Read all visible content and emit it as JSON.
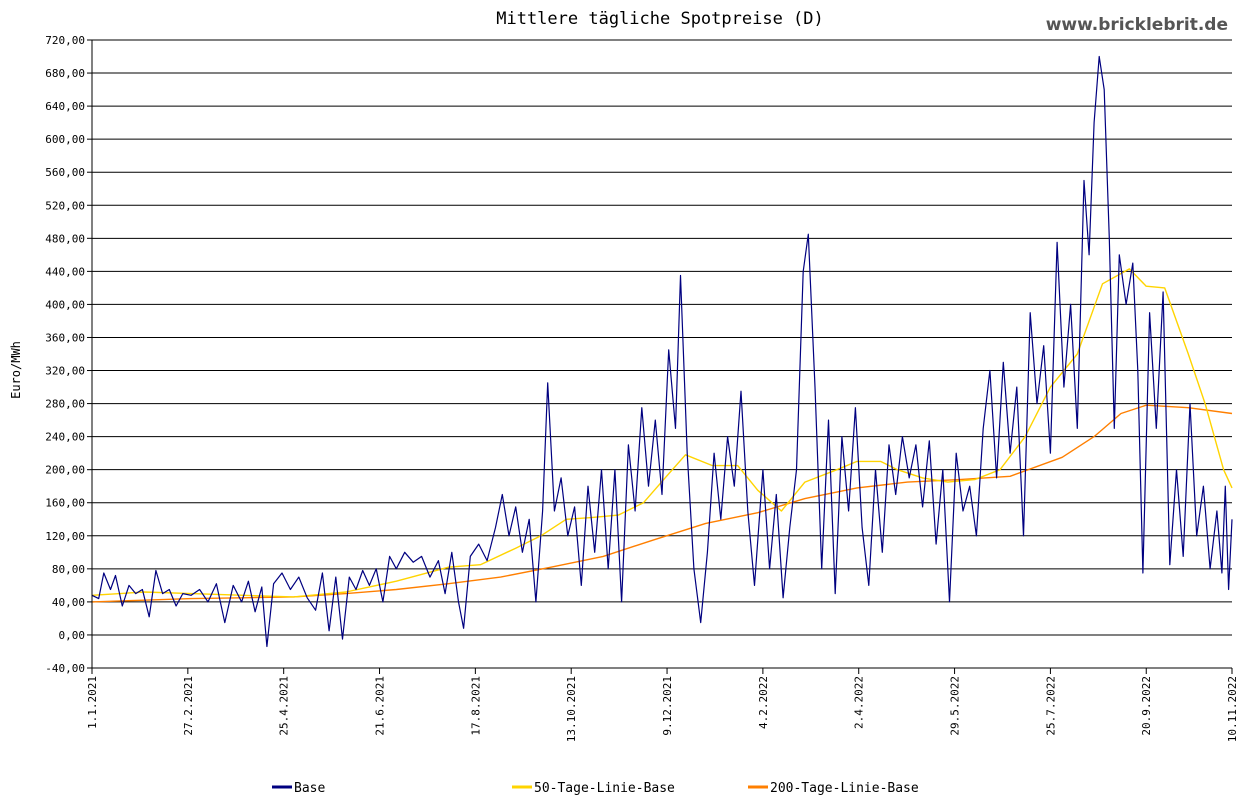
{
  "chart_data": {
    "type": "line",
    "title": "Mittlere tägliche Spotpreise (D)",
    "watermark": "www.bricklebrit.de",
    "ylabel": "Euro/MWh",
    "xlabel": "",
    "ylim": [
      -40,
      720
    ],
    "yticks": [
      -40,
      0,
      40,
      80,
      120,
      160,
      200,
      240,
      280,
      320,
      360,
      400,
      440,
      480,
      520,
      560,
      600,
      640,
      680,
      720
    ],
    "ytick_labels": [
      "-40,00",
      "0,00",
      "40,00",
      "80,00",
      "120,00",
      "160,00",
      "200,00",
      "240,00",
      "280,00",
      "320,00",
      "360,00",
      "400,00",
      "440,00",
      "480,00",
      "520,00",
      "560,00",
      "600,00",
      "640,00",
      "680,00",
      "720,00"
    ],
    "x_range": [
      "2021-01-01",
      "2022-11-10"
    ],
    "xticks": [
      "2021-01-01",
      "2021-02-27",
      "2021-04-25",
      "2021-06-21",
      "2021-08-17",
      "2021-10-13",
      "2021-12-09",
      "2022-02-04",
      "2022-04-02",
      "2022-05-29",
      "2022-07-25",
      "2022-09-20",
      "2022-11-10"
    ],
    "xtick_labels": [
      "1.1.2021",
      "27.2.2021",
      "25.4.2021",
      "21.6.2021",
      "17.8.2021",
      "13.10.2021",
      "9.12.2021",
      "4.2.2022",
      "2.4.2022",
      "29.5.2022",
      "25.7.2022",
      "20.9.2022",
      "10.11.2022"
    ],
    "grid": true,
    "legend_position": "bottom",
    "series": [
      {
        "name": "Base",
        "color": "#000080",
        "points": [
          [
            "2021-01-01",
            48
          ],
          [
            "2021-01-05",
            44
          ],
          [
            "2021-01-08",
            75
          ],
          [
            "2021-01-12",
            55
          ],
          [
            "2021-01-15",
            72
          ],
          [
            "2021-01-19",
            35
          ],
          [
            "2021-01-23",
            60
          ],
          [
            "2021-01-27",
            50
          ],
          [
            "2021-01-31",
            55
          ],
          [
            "2021-02-04",
            22
          ],
          [
            "2021-02-08",
            78
          ],
          [
            "2021-02-12",
            50
          ],
          [
            "2021-02-16",
            55
          ],
          [
            "2021-02-20",
            35
          ],
          [
            "2021-02-24",
            50
          ],
          [
            "2021-03-01",
            48
          ],
          [
            "2021-03-06",
            55
          ],
          [
            "2021-03-11",
            40
          ],
          [
            "2021-03-16",
            62
          ],
          [
            "2021-03-21",
            15
          ],
          [
            "2021-03-26",
            60
          ],
          [
            "2021-03-31",
            40
          ],
          [
            "2021-04-04",
            65
          ],
          [
            "2021-04-08",
            28
          ],
          [
            "2021-04-12",
            58
          ],
          [
            "2021-04-15",
            -14
          ],
          [
            "2021-04-19",
            62
          ],
          [
            "2021-04-24",
            75
          ],
          [
            "2021-04-29",
            55
          ],
          [
            "2021-05-04",
            70
          ],
          [
            "2021-05-09",
            45
          ],
          [
            "2021-05-14",
            30
          ],
          [
            "2021-05-18",
            75
          ],
          [
            "2021-05-22",
            5
          ],
          [
            "2021-05-26",
            70
          ],
          [
            "2021-05-30",
            -5
          ],
          [
            "2021-06-03",
            70
          ],
          [
            "2021-06-07",
            55
          ],
          [
            "2021-06-11",
            78
          ],
          [
            "2021-06-15",
            60
          ],
          [
            "2021-06-19",
            80
          ],
          [
            "2021-06-23",
            40
          ],
          [
            "2021-06-27",
            95
          ],
          [
            "2021-07-01",
            80
          ],
          [
            "2021-07-06",
            100
          ],
          [
            "2021-07-11",
            88
          ],
          [
            "2021-07-16",
            95
          ],
          [
            "2021-07-21",
            70
          ],
          [
            "2021-07-26",
            90
          ],
          [
            "2021-07-30",
            50
          ],
          [
            "2021-08-03",
            100
          ],
          [
            "2021-08-07",
            40
          ],
          [
            "2021-08-10",
            8
          ],
          [
            "2021-08-14",
            95
          ],
          [
            "2021-08-19",
            110
          ],
          [
            "2021-08-24",
            90
          ],
          [
            "2021-08-29",
            130
          ],
          [
            "2021-09-02",
            170
          ],
          [
            "2021-09-06",
            120
          ],
          [
            "2021-09-10",
            155
          ],
          [
            "2021-09-14",
            100
          ],
          [
            "2021-09-18",
            140
          ],
          [
            "2021-09-22",
            40
          ],
          [
            "2021-09-26",
            150
          ],
          [
            "2021-09-29",
            305
          ],
          [
            "2021-10-03",
            150
          ],
          [
            "2021-10-07",
            190
          ],
          [
            "2021-10-11",
            120
          ],
          [
            "2021-10-15",
            155
          ],
          [
            "2021-10-19",
            60
          ],
          [
            "2021-10-23",
            180
          ],
          [
            "2021-10-27",
            100
          ],
          [
            "2021-10-31",
            200
          ],
          [
            "2021-11-04",
            80
          ],
          [
            "2021-11-08",
            200
          ],
          [
            "2021-11-12",
            40
          ],
          [
            "2021-11-16",
            230
          ],
          [
            "2021-11-20",
            150
          ],
          [
            "2021-11-24",
            275
          ],
          [
            "2021-11-28",
            180
          ],
          [
            "2021-12-02",
            260
          ],
          [
            "2021-12-06",
            170
          ],
          [
            "2021-12-10",
            345
          ],
          [
            "2021-12-14",
            250
          ],
          [
            "2021-12-17",
            435
          ],
          [
            "2021-12-21",
            220
          ],
          [
            "2021-12-25",
            80
          ],
          [
            "2021-12-29",
            15
          ],
          [
            "2022-01-02",
            100
          ],
          [
            "2022-01-06",
            220
          ],
          [
            "2022-01-10",
            140
          ],
          [
            "2022-01-14",
            240
          ],
          [
            "2022-01-18",
            180
          ],
          [
            "2022-01-22",
            295
          ],
          [
            "2022-01-26",
            150
          ],
          [
            "2022-01-30",
            60
          ],
          [
            "2022-02-04",
            200
          ],
          [
            "2022-02-08",
            80
          ],
          [
            "2022-02-12",
            170
          ],
          [
            "2022-02-16",
            45
          ],
          [
            "2022-02-20",
            130
          ],
          [
            "2022-02-24",
            200
          ],
          [
            "2022-02-28",
            440
          ],
          [
            "2022-03-03",
            485
          ],
          [
            "2022-03-07",
            300
          ],
          [
            "2022-03-11",
            80
          ],
          [
            "2022-03-15",
            260
          ],
          [
            "2022-03-19",
            50
          ],
          [
            "2022-03-23",
            240
          ],
          [
            "2022-03-27",
            150
          ],
          [
            "2022-03-31",
            275
          ],
          [
            "2022-04-04",
            130
          ],
          [
            "2022-04-08",
            60
          ],
          [
            "2022-04-12",
            200
          ],
          [
            "2022-04-16",
            100
          ],
          [
            "2022-04-20",
            230
          ],
          [
            "2022-04-24",
            170
          ],
          [
            "2022-04-28",
            240
          ],
          [
            "2022-05-02",
            190
          ],
          [
            "2022-05-06",
            230
          ],
          [
            "2022-05-10",
            155
          ],
          [
            "2022-05-14",
            235
          ],
          [
            "2022-05-18",
            110
          ],
          [
            "2022-05-22",
            200
          ],
          [
            "2022-05-26",
            40
          ],
          [
            "2022-05-30",
            220
          ],
          [
            "2022-06-03",
            150
          ],
          [
            "2022-06-07",
            180
          ],
          [
            "2022-06-11",
            120
          ],
          [
            "2022-06-15",
            250
          ],
          [
            "2022-06-19",
            320
          ],
          [
            "2022-06-23",
            190
          ],
          [
            "2022-06-27",
            330
          ],
          [
            "2022-07-01",
            220
          ],
          [
            "2022-07-05",
            300
          ],
          [
            "2022-07-09",
            120
          ],
          [
            "2022-07-13",
            390
          ],
          [
            "2022-07-17",
            280
          ],
          [
            "2022-07-21",
            350
          ],
          [
            "2022-07-25",
            220
          ],
          [
            "2022-07-29",
            475
          ],
          [
            "2022-08-02",
            300
          ],
          [
            "2022-08-06",
            400
          ],
          [
            "2022-08-10",
            250
          ],
          [
            "2022-08-14",
            550
          ],
          [
            "2022-08-17",
            460
          ],
          [
            "2022-08-20",
            620
          ],
          [
            "2022-08-23",
            700
          ],
          [
            "2022-08-26",
            660
          ],
          [
            "2022-08-29",
            480
          ],
          [
            "2022-09-01",
            250
          ],
          [
            "2022-09-04",
            460
          ],
          [
            "2022-09-08",
            400
          ],
          [
            "2022-09-12",
            450
          ],
          [
            "2022-09-15",
            320
          ],
          [
            "2022-09-18",
            75
          ],
          [
            "2022-09-22",
            390
          ],
          [
            "2022-09-26",
            250
          ],
          [
            "2022-09-30",
            415
          ],
          [
            "2022-10-04",
            85
          ],
          [
            "2022-10-08",
            200
          ],
          [
            "2022-10-12",
            95
          ],
          [
            "2022-10-16",
            280
          ],
          [
            "2022-10-20",
            120
          ],
          [
            "2022-10-24",
            180
          ],
          [
            "2022-10-28",
            80
          ],
          [
            "2022-11-01",
            150
          ],
          [
            "2022-11-04",
            75
          ],
          [
            "2022-11-06",
            180
          ],
          [
            "2022-11-08",
            55
          ],
          [
            "2022-11-10",
            140
          ]
        ]
      },
      {
        "name": "50-Tage-Linie-Base",
        "color": "#ffd400",
        "points": [
          [
            "2021-01-01",
            48
          ],
          [
            "2021-02-01",
            52
          ],
          [
            "2021-03-01",
            50
          ],
          [
            "2021-04-01",
            48
          ],
          [
            "2021-05-01",
            46
          ],
          [
            "2021-06-01",
            52
          ],
          [
            "2021-07-01",
            65
          ],
          [
            "2021-08-01",
            82
          ],
          [
            "2021-08-20",
            85
          ],
          [
            "2021-09-10",
            105
          ],
          [
            "2021-09-25",
            120
          ],
          [
            "2021-10-10",
            140
          ],
          [
            "2021-10-25",
            142
          ],
          [
            "2021-11-10",
            145
          ],
          [
            "2021-11-25",
            160
          ],
          [
            "2021-12-10",
            195
          ],
          [
            "2021-12-20",
            218
          ],
          [
            "2022-01-05",
            205
          ],
          [
            "2022-01-20",
            205
          ],
          [
            "2022-02-01",
            175
          ],
          [
            "2022-02-15",
            150
          ],
          [
            "2022-03-01",
            185
          ],
          [
            "2022-03-20",
            200
          ],
          [
            "2022-04-01",
            210
          ],
          [
            "2022-04-15",
            210
          ],
          [
            "2022-04-25",
            200
          ],
          [
            "2022-05-10",
            190
          ],
          [
            "2022-05-25",
            185
          ],
          [
            "2022-06-10",
            188
          ],
          [
            "2022-06-25",
            200
          ],
          [
            "2022-07-10",
            240
          ],
          [
            "2022-07-25",
            300
          ],
          [
            "2022-08-10",
            340
          ],
          [
            "2022-08-25",
            425
          ],
          [
            "2022-09-10",
            443
          ],
          [
            "2022-09-20",
            422
          ],
          [
            "2022-10-01",
            420
          ],
          [
            "2022-10-15",
            340
          ],
          [
            "2022-10-25",
            280
          ],
          [
            "2022-11-05",
            200
          ],
          [
            "2022-11-10",
            178
          ]
        ]
      },
      {
        "name": "200-Tage-Linie-Base",
        "color": "#ff7f00",
        "points": [
          [
            "2021-01-01",
            40
          ],
          [
            "2021-02-01",
            42
          ],
          [
            "2021-03-01",
            44
          ],
          [
            "2021-04-01",
            45
          ],
          [
            "2021-05-01",
            46
          ],
          [
            "2021-06-01",
            50
          ],
          [
            "2021-07-01",
            55
          ],
          [
            "2021-08-01",
            62
          ],
          [
            "2021-09-01",
            70
          ],
          [
            "2021-10-01",
            82
          ],
          [
            "2021-11-01",
            95
          ],
          [
            "2021-12-01",
            115
          ],
          [
            "2022-01-01",
            135
          ],
          [
            "2022-02-01",
            148
          ],
          [
            "2022-03-01",
            165
          ],
          [
            "2022-04-01",
            178
          ],
          [
            "2022-05-01",
            185
          ],
          [
            "2022-06-01",
            188
          ],
          [
            "2022-07-01",
            192
          ],
          [
            "2022-08-01",
            215
          ],
          [
            "2022-08-20",
            240
          ],
          [
            "2022-09-05",
            268
          ],
          [
            "2022-09-20",
            278
          ],
          [
            "2022-10-15",
            275
          ],
          [
            "2022-11-10",
            268
          ]
        ]
      }
    ]
  }
}
